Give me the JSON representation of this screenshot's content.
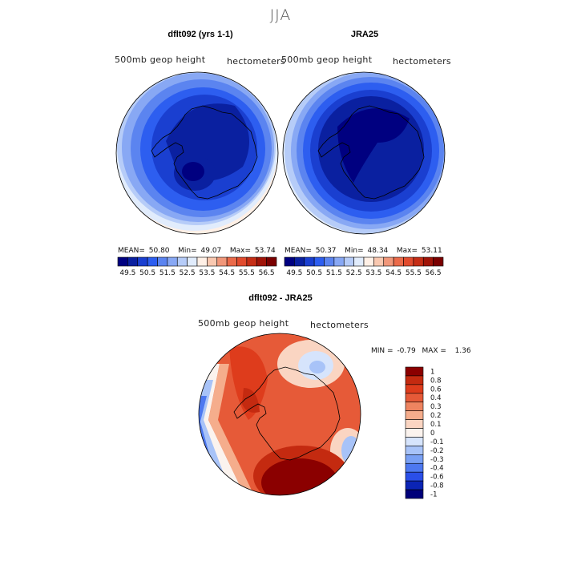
{
  "main_title": "JJA",
  "colors": {
    "abs_scale": [
      "#000080",
      "#0a20a0",
      "#1a3fd0",
      "#2d5ef0",
      "#5b84f0",
      "#88a8f4",
      "#b6ccf8",
      "#e1ecfc",
      "#fff0e6",
      "#f9c8b0",
      "#f1977a",
      "#ea6a4a",
      "#e14b2e",
      "#c52e16",
      "#a01408",
      "#7a0000"
    ],
    "diff_scale": [
      "#00007a",
      "#0b24b5",
      "#2a4fe8",
      "#4d78f0",
      "#79a0f4",
      "#a8c3f8",
      "#d6e4fc",
      "#fbf3ee",
      "#fad5c2",
      "#f5ad8c",
      "#ee8460",
      "#e65a38",
      "#de3c1c",
      "#c42a10",
      "#8b0000"
    ]
  },
  "charts": [
    {
      "title": "dflt092 (yrs 1-1)",
      "var_label": "500mb  geop  height",
      "unit_label": "hectometers",
      "stats": {
        "mean_label": "MEAN=",
        "mean": "50.80",
        "min_label": "Min=",
        "min": "49.07",
        "max_label": "Max=",
        "max": "53.74"
      },
      "colorbar_ticks": [
        "49.5",
        "50.5",
        "51.5",
        "52.5",
        "53.5",
        "54.5",
        "55.5",
        "56.5"
      ]
    },
    {
      "title": "JRA25",
      "var_label": "500mb  geop  height",
      "unit_label": "hectometers",
      "stats": {
        "mean_label": "MEAN=",
        "mean": "50.37",
        "min_label": "Min=",
        "min": "48.34",
        "max_label": "Max=",
        "max": "53.11"
      },
      "colorbar_ticks": [
        "49.5",
        "50.5",
        "51.5",
        "52.5",
        "53.5",
        "54.5",
        "55.5",
        "56.5"
      ]
    },
    {
      "title": "dflt092 - JRA25",
      "var_label": "500mb  geop  height",
      "unit_label": "hectometers",
      "stats": {
        "min_label": "MIN =",
        "min": "-0.79",
        "max_label": "MAX =",
        "max": "1.36"
      },
      "colorbar_ticks": [
        "1",
        "0.8",
        "0.6",
        "0.4",
        "0.3",
        "0.2",
        "0.1",
        "0",
        "-0.1",
        "-0.2",
        "-0.3",
        "-0.4",
        "-0.6",
        "-0.8",
        "-1"
      ]
    }
  ],
  "chart_data": [
    {
      "type": "heatmap",
      "title": "dflt092 (yrs 1-1)",
      "variable": "500mb  geop  height",
      "units": "hectometers",
      "projection": "south polar stereographic",
      "mean": 50.8,
      "min": 49.07,
      "max": 53.74,
      "colorbar_levels": [
        49.5,
        50,
        50.5,
        51,
        51.5,
        52,
        52.5,
        53,
        53.5,
        54,
        54.5,
        55,
        55.5,
        56,
        56.5
      ]
    },
    {
      "type": "heatmap",
      "title": "JRA25",
      "variable": "500mb  geop  height",
      "units": "hectometers",
      "projection": "south polar stereographic",
      "mean": 50.37,
      "min": 48.34,
      "max": 53.11,
      "colorbar_levels": [
        49.5,
        50,
        50.5,
        51,
        51.5,
        52,
        52.5,
        53,
        53.5,
        54,
        54.5,
        55,
        55.5,
        56,
        56.5
      ]
    },
    {
      "type": "heatmap",
      "title": "dflt092 - JRA25",
      "variable": "500mb  geop  height",
      "units": "hectometers",
      "projection": "south polar stereographic",
      "min": -0.79,
      "max": 1.36,
      "colorbar_levels": [
        -1,
        -0.8,
        -0.6,
        -0.4,
        -0.3,
        -0.2,
        -0.1,
        0,
        0.1,
        0.2,
        0.3,
        0.4,
        0.6,
        0.8,
        1
      ]
    }
  ]
}
